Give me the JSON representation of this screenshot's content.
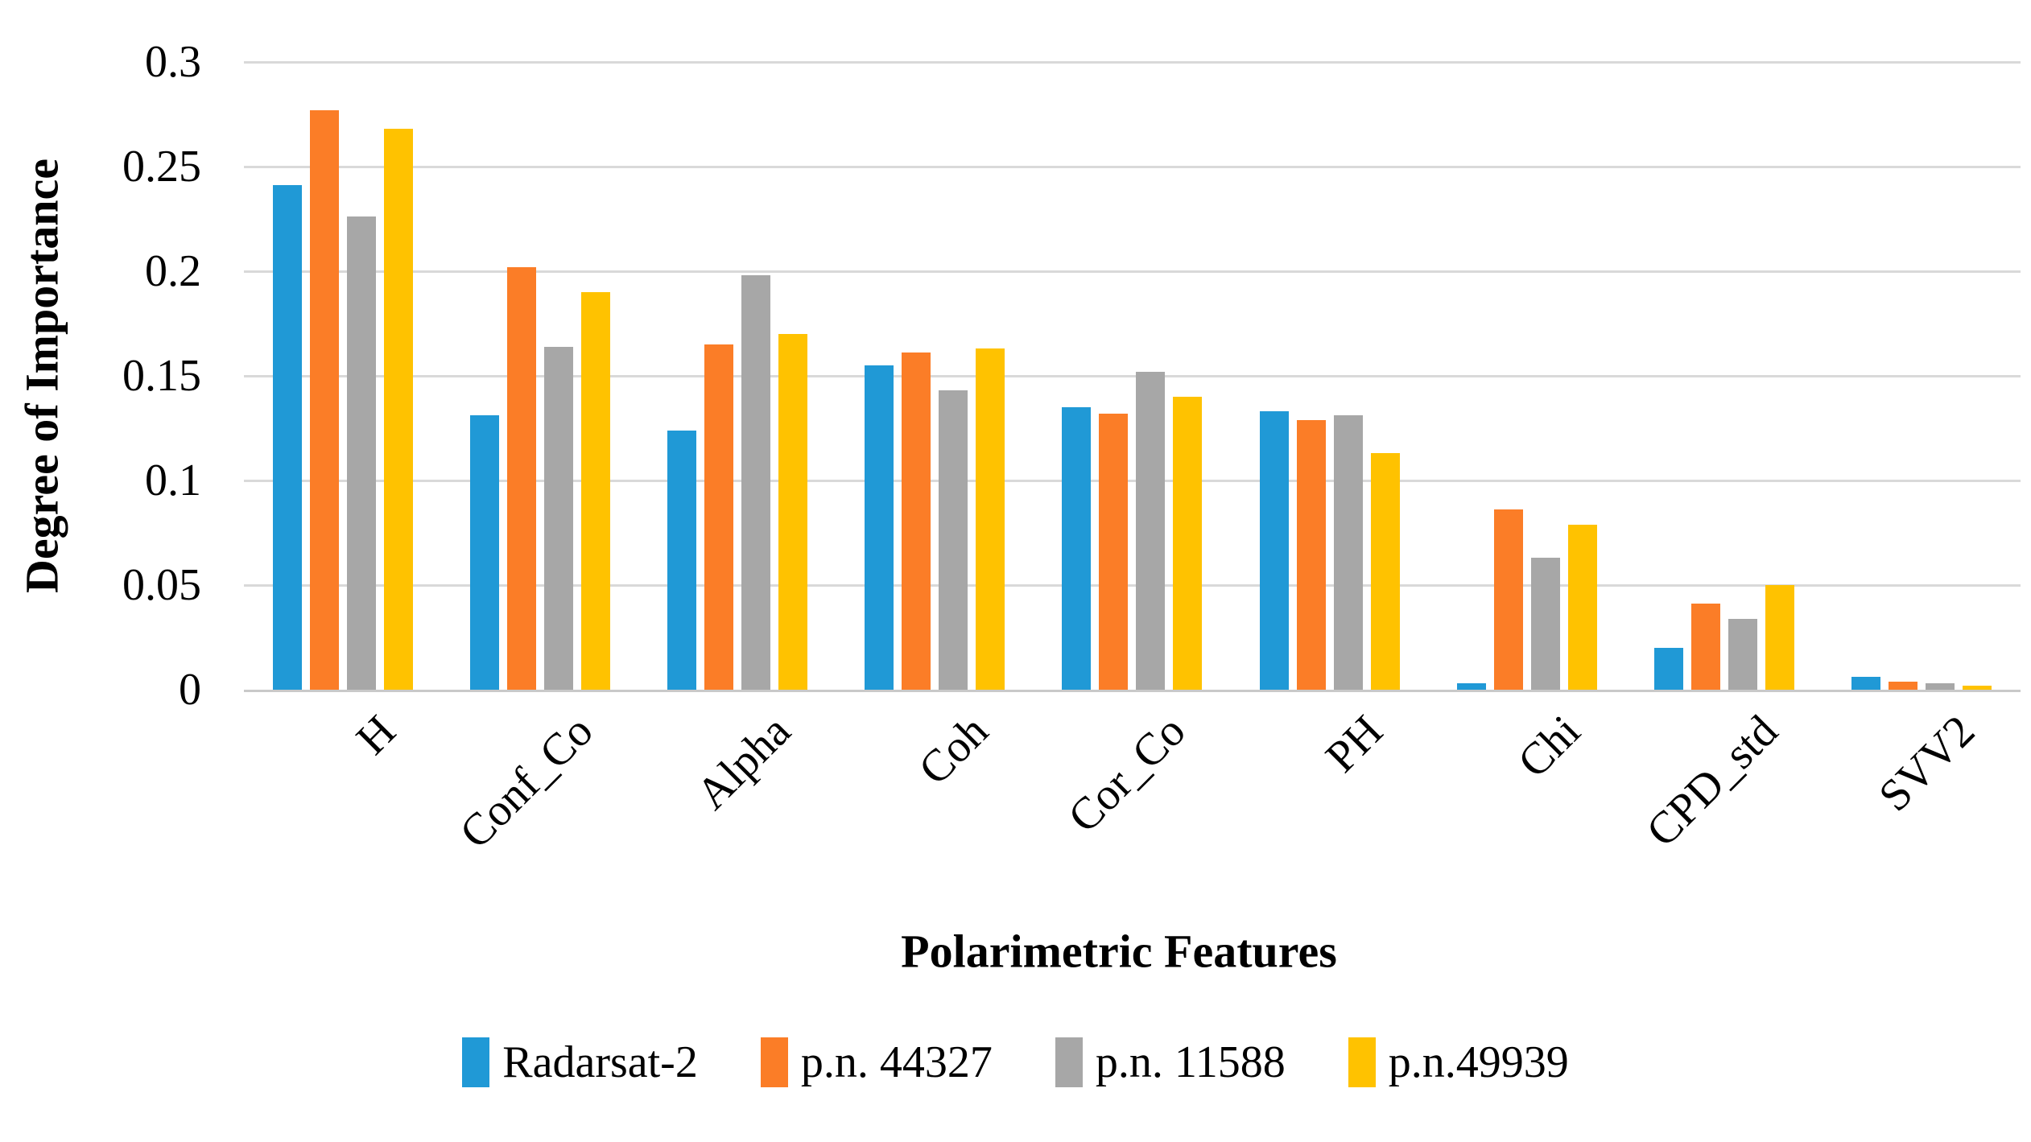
{
  "figure": {
    "background": "#ffffff",
    "gridline_color": "#d9d9d9",
    "axis_line_color": "#c9c9c9",
    "text_color": "#000000"
  },
  "chart_data": {
    "type": "bar",
    "title": "",
    "xlabel": "Polarimetric Features",
    "ylabel": "Degree of Importance",
    "categories": [
      "H",
      "Conf_Co",
      "Alpha",
      "Coh",
      "Cor_Co",
      "PH",
      "Chi",
      "CPD_std",
      "SVV2"
    ],
    "series": [
      {
        "name": "Radarsat-2",
        "color": "#2099d6",
        "values": [
          0.241,
          0.131,
          0.124,
          0.155,
          0.135,
          0.133,
          0.003,
          0.02,
          0.006
        ]
      },
      {
        "name": "p.n. 44327",
        "color": "#fb7d27",
        "values": [
          0.277,
          0.202,
          0.165,
          0.161,
          0.132,
          0.129,
          0.086,
          0.041,
          0.004
        ]
      },
      {
        "name": "p.n. 11588",
        "color": "#a7a7a7",
        "values": [
          0.226,
          0.164,
          0.198,
          0.143,
          0.152,
          0.131,
          0.063,
          0.034,
          0.003
        ]
      },
      {
        "name": "p.n.49939",
        "color": "#ffc200",
        "values": [
          0.268,
          0.19,
          0.17,
          0.163,
          0.14,
          0.113,
          0.079,
          0.05,
          0.002
        ]
      }
    ],
    "ylim": [
      0,
      0.3
    ],
    "yticks": [
      "0",
      "0.05",
      "0.1",
      "0.15",
      "0.2",
      "0.25",
      "0.3"
    ],
    "grid": true,
    "legend_position": "bottom",
    "x_tick_rotation_deg": 45
  }
}
